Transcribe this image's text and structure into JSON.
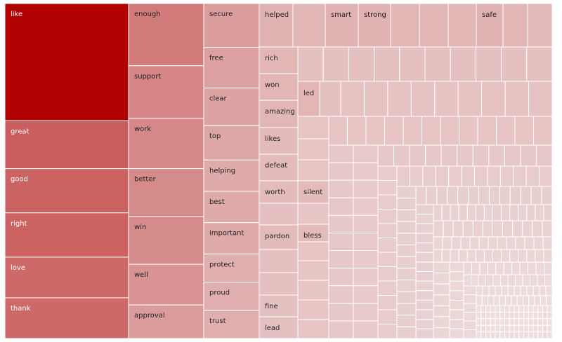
{
  "chart_data": {
    "type": "treemap",
    "title": "",
    "colors": {
      "max": "#b00000",
      "min": "#f2eeee",
      "border": "#ffffff"
    },
    "columns": [
      {
        "items": [
          {
            "label": "like",
            "value": 98
          },
          {
            "label": "great",
            "value": 40
          },
          {
            "label": "good",
            "value": 37
          },
          {
            "label": "right",
            "value": 37
          },
          {
            "label": "love",
            "value": 34
          },
          {
            "label": "thank",
            "value": 34
          }
        ]
      },
      {
        "items": [
          {
            "label": "enough",
            "value": 26
          },
          {
            "label": "support",
            "value": 22
          },
          {
            "label": "work",
            "value": 21
          },
          {
            "label": "better",
            "value": 20
          },
          {
            "label": "win",
            "value": 20
          },
          {
            "label": "well",
            "value": 17
          },
          {
            "label": "approval",
            "value": 14
          }
        ]
      },
      {
        "items": [
          {
            "label": "secure",
            "value": 14
          },
          {
            "label": "free",
            "value": 13
          },
          {
            "label": "clear",
            "value": 12
          },
          {
            "label": "top",
            "value": 11
          },
          {
            "label": "helping",
            "value": 10
          },
          {
            "label": "best",
            "value": 10
          },
          {
            "label": "important",
            "value": 10
          },
          {
            "label": "protect",
            "value": 9
          },
          {
            "label": "proud",
            "value": 9
          },
          {
            "label": "trust",
            "value": 9
          }
        ]
      },
      {
        "items": [
          {
            "label": "helped",
            "value": 8
          },
          {
            "label": "smart",
            "value": 8
          },
          {
            "label": "strong",
            "value": 8
          },
          {
            "label": "safe",
            "value": 8
          },
          {
            "label": "rich",
            "value": 7
          },
          {
            "label": "won",
            "value": 7
          },
          {
            "label": "led",
            "value": 7
          },
          {
            "label": "amazing",
            "value": 7
          },
          {
            "label": "likes",
            "value": 6
          },
          {
            "label": "defeat",
            "value": 6
          },
          {
            "label": "worth",
            "value": 6
          },
          {
            "label": "silent",
            "value": 6
          },
          {
            "label": "pardon",
            "value": 6
          },
          {
            "label": "bless",
            "value": 6
          },
          {
            "label": "fine",
            "value": 5
          },
          {
            "label": "lead",
            "value": 5
          }
        ]
      }
    ]
  }
}
